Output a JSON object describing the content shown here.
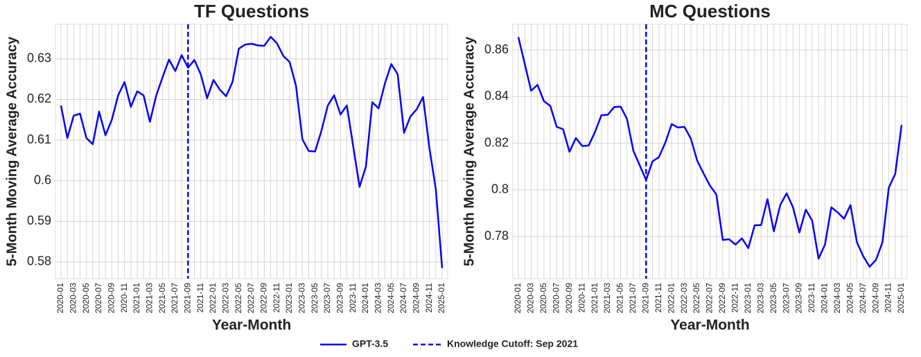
{
  "chart_data": [
    {
      "type": "line",
      "title": "TF Questions",
      "xlabel": "Year-Month",
      "ylabel": "5-Month Moving Average Accuracy",
      "categories": [
        "2020-01",
        null,
        "2020-03",
        null,
        "2020-05",
        null,
        "2020-07",
        null,
        "2020-09",
        null,
        "2020-11",
        null,
        "2021-01",
        null,
        "2021-03",
        null,
        "2021-05",
        null,
        "2021-07",
        null,
        "2021-09",
        null,
        "2021-11",
        null,
        "2022-01",
        null,
        "2022-03",
        null,
        "2022-05",
        null,
        "2022-07",
        null,
        "2022-09",
        null,
        "2022-11",
        null,
        "2023-01",
        null,
        "2023-03",
        null,
        "2023-05",
        null,
        "2023-07",
        null,
        "2023-09",
        null,
        "2023-11",
        null,
        "2024-01",
        null,
        "2024-03",
        null,
        "2024-05",
        null,
        "2024-07",
        null,
        "2024-09",
        null,
        "2024-11",
        null,
        "2025-01"
      ],
      "series": [
        {
          "name": "GPT-3.5",
          "color": "#0000ff",
          "values": [
            0.6185,
            0.6105,
            0.616,
            0.6165,
            0.6105,
            0.609,
            0.617,
            0.6112,
            0.615,
            0.621,
            0.6243,
            0.6182,
            0.622,
            0.621,
            0.6145,
            0.621,
            0.6255,
            0.6298,
            0.627,
            0.6309,
            0.6278,
            0.6297,
            0.6262,
            0.6203,
            0.6248,
            0.6224,
            0.6208,
            0.6243,
            0.6325,
            0.6335,
            0.6337,
            0.6333,
            0.6332,
            0.6354,
            0.6338,
            0.6307,
            0.6292,
            0.6233,
            0.6102,
            0.6073,
            0.6072,
            0.6123,
            0.6185,
            0.621,
            0.6163,
            0.6185,
            0.6085,
            0.5985,
            0.6035,
            0.6193,
            0.6178,
            0.624,
            0.6287,
            0.6262,
            0.6118,
            0.6158,
            0.6176,
            0.6206,
            0.608,
            0.598,
            0.5785
          ]
        }
      ],
      "vline": {
        "x": "2021-09",
        "name": "Knowledge Cutoff: Sep 2021",
        "color": "#0000ff",
        "style": "dashed"
      },
      "ylim": [
        0.5759,
        0.6385
      ],
      "yticks": [
        0.58,
        0.59,
        0.6,
        0.61,
        0.62,
        0.63
      ],
      "grid": true
    },
    {
      "type": "line",
      "title": "MC Questions",
      "xlabel": "Year-Month",
      "ylabel": "5-Month Moving Average Accuracy",
      "categories": [
        "2020-01",
        null,
        "2020-03",
        null,
        "2020-05",
        null,
        "2020-07",
        null,
        "2020-09",
        null,
        "2020-11",
        null,
        "2021-01",
        null,
        "2021-03",
        null,
        "2021-05",
        null,
        "2021-07",
        null,
        "2021-09",
        null,
        "2021-11",
        null,
        "2022-01",
        null,
        "2022-03",
        null,
        "2022-05",
        null,
        "2022-07",
        null,
        "2022-09",
        null,
        "2022-11",
        null,
        "2023-01",
        null,
        "2023-03",
        null,
        "2023-05",
        null,
        "2023-07",
        null,
        "2023-09",
        null,
        "2023-11",
        null,
        "2024-01",
        null,
        "2024-03",
        null,
        "2024-05",
        null,
        "2024-07",
        null,
        "2024-09",
        null,
        "2024-11",
        null,
        "2025-01"
      ],
      "series": [
        {
          "name": "GPT-3.5",
          "color": "#0000ff",
          "values": [
            0.8655,
            0.854,
            0.8425,
            0.845,
            0.838,
            0.836,
            0.827,
            0.826,
            0.8163,
            0.8222,
            0.8188,
            0.819,
            0.8248,
            0.832,
            0.8322,
            0.8355,
            0.8357,
            0.8305,
            0.8168,
            0.8105,
            0.8042,
            0.8122,
            0.814,
            0.8202,
            0.8282,
            0.8267,
            0.827,
            0.822,
            0.8125,
            0.807,
            0.8018,
            0.798,
            0.7785,
            0.7788,
            0.7765,
            0.7792,
            0.775,
            0.7848,
            0.7849,
            0.796,
            0.7822,
            0.7935,
            0.7985,
            0.7925,
            0.7817,
            0.7915,
            0.7868,
            0.7705,
            0.7765,
            0.7925,
            0.7903,
            0.7876,
            0.7935,
            0.7775,
            0.7715,
            0.767,
            0.77,
            0.7775,
            0.801,
            0.8068,
            0.8278
          ]
        }
      ],
      "vline": {
        "x": "2021-09",
        "name": "Knowledge Cutoff: Sep 2021",
        "color": "#0000ff",
        "style": "dashed"
      },
      "ylim": [
        0.7619,
        0.871
      ],
      "yticks": [
        0.78,
        0.8,
        0.82,
        0.84,
        0.86
      ],
      "grid": true
    }
  ]
}
